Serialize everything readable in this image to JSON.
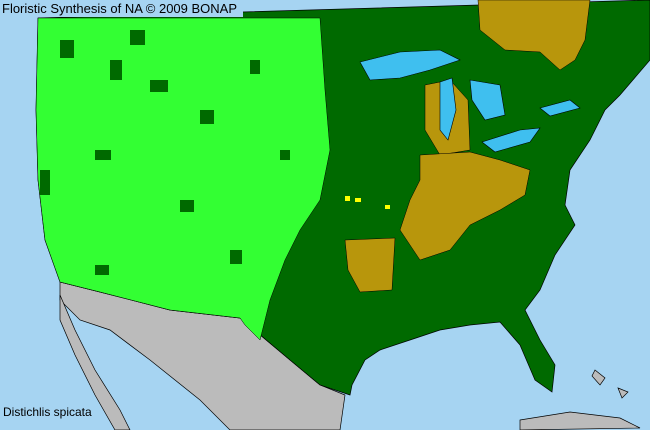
{
  "header": {
    "title": "Floristic Synthesis of NA © 2009 BONAP"
  },
  "map": {
    "species": "Distichlis spicata",
    "colors": {
      "ocean": "#a6d4f2",
      "present_native": "#33ff33",
      "present_state": "#006a00",
      "absent": "#b8960c",
      "rare": "#ffff00",
      "non_us": "#bbbbbb",
      "lakes": "#3fbfef",
      "borders": "#000000"
    }
  }
}
